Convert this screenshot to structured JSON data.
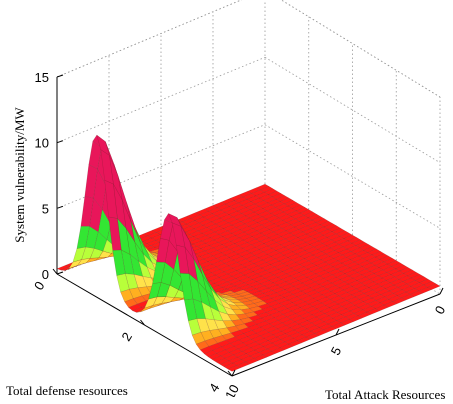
{
  "chart_data": {
    "type": "surface",
    "title": "",
    "zlabel": "System vulnerability/MW",
    "xlabel": "Total Attack Resources",
    "ylabel": "Total defense resources",
    "zlim": [
      0,
      15
    ],
    "z_ticks": [
      "0",
      "5",
      "10",
      "15"
    ],
    "attack_ticks": [
      "0",
      "5",
      "10"
    ],
    "defense_ticks": [
      "0",
      "2",
      "4"
    ],
    "attack_range": [
      0,
      10
    ],
    "defense_range": [
      0,
      4
    ],
    "grid": true,
    "colormap": [
      "#ff1a1a",
      "#ff6a1a",
      "#ffb020",
      "#ffe24a",
      "#b8ff3a",
      "#33e633",
      "#e8165a"
    ],
    "peaks": [
      {
        "defense": 0.9,
        "attack": 10,
        "vulnerability": 10.8
      },
      {
        "defense": 2.55,
        "attack": 10,
        "vulnerability": 8.0
      }
    ]
  }
}
